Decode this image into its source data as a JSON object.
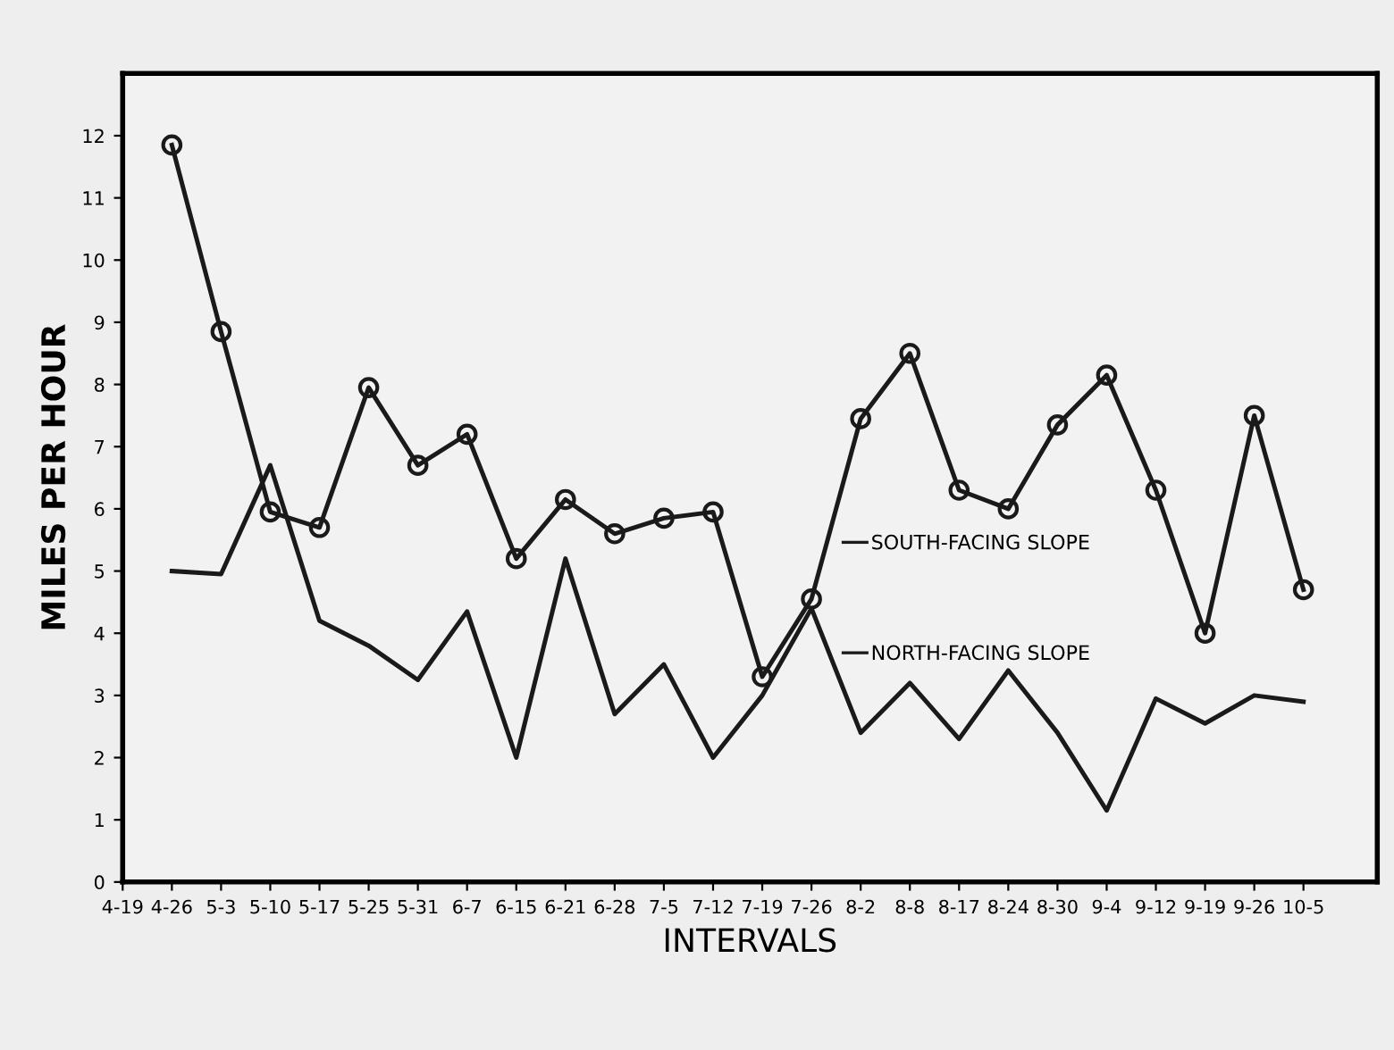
{
  "chart_data": {
    "type": "line",
    "xlabel": "INTERVALS",
    "ylabel": "MILES PER HOUR",
    "categories": [
      "4-19",
      "4-26",
      "5-3",
      "5-10",
      "5-17",
      "5-25",
      "5-31",
      "6-7",
      "6-15",
      "6-21",
      "6-28",
      "7-5",
      "7-12",
      "7-19",
      "7-26",
      "8-2",
      "8-8",
      "8-17",
      "8-24",
      "8-30",
      "9-4",
      "9-12",
      "9-19",
      "9-26",
      "10-5"
    ],
    "ylim": [
      0,
      13
    ],
    "yticks": [
      0,
      1,
      2,
      3,
      4,
      5,
      6,
      7,
      8,
      9,
      10,
      11,
      12
    ],
    "grid": false,
    "legend": "center",
    "line_style": "solid",
    "series": [
      {
        "name": "SOUTH-FACING SLOPE",
        "color": "#1a1a1a",
        "marker": "circle",
        "values": [
          null,
          11.85,
          8.85,
          5.95,
          5.7,
          7.95,
          6.7,
          7.2,
          5.2,
          6.15,
          5.6,
          5.85,
          5.95,
          3.3,
          4.55,
          7.45,
          8.5,
          6.3,
          6.0,
          7.35,
          8.15,
          6.3,
          4.0,
          7.5,
          4.7
        ]
      },
      {
        "name": "NORTH-FACING SLOPE",
        "color": "#1a1a1a",
        "marker": "none",
        "values": [
          null,
          5.0,
          4.95,
          6.7,
          4.2,
          3.8,
          3.25,
          4.35,
          2.0,
          5.2,
          2.7,
          3.5,
          2.0,
          3.0,
          4.4,
          2.4,
          3.2,
          2.3,
          3.4,
          2.4,
          1.15,
          2.95,
          2.55,
          3.0,
          2.9
        ]
      }
    ]
  }
}
